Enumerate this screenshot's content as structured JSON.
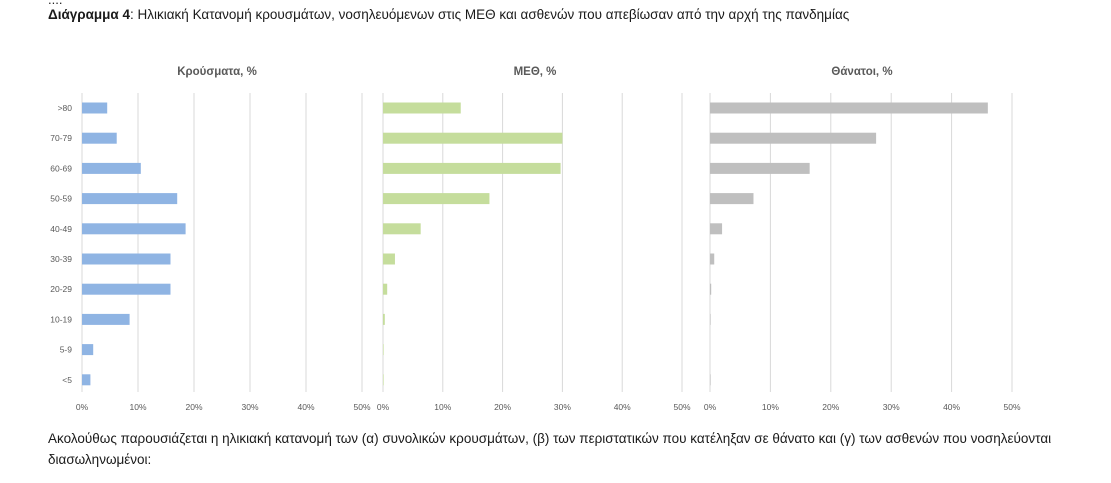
{
  "header": {
    "clipped_line": "....",
    "caption_prefix": "Διάγραμμα 4",
    "caption_text": ": Ηλικιακή Κατανομή κρουσμάτων, νοσηλευόμενων στις ΜΕΘ και ασθενών που απεβίωσαν από την αρχή της πανδημίας"
  },
  "paragraph": {
    "text": "Ακολούθως παρουσιάζεται η ηλικιακή κατανομή των (α) συνολικών κρουσμάτων, (β) των περιστατικών που κατέληξαν σε θάνατο και (γ) των ασθενών που νοσηλεύονται διασωληνωμένοι:"
  },
  "chart_data": [
    {
      "type": "bar",
      "orientation": "horizontal",
      "title": "Κρούσματα, %",
      "categories": [
        ">80",
        "70-79",
        "60-69",
        "50-59",
        "40-49",
        "30-39",
        "20-29",
        "10-19",
        "5-9",
        "<5"
      ],
      "values": [
        4.5,
        6.2,
        10.5,
        17.0,
        18.5,
        15.8,
        15.8,
        8.5,
        2.0,
        1.5
      ],
      "xlim": [
        0,
        50
      ],
      "xticks": [
        "0%",
        "10%",
        "20%",
        "30%",
        "40%",
        "50%"
      ],
      "color": "#8fb4e3",
      "grid": true
    },
    {
      "type": "bar",
      "orientation": "horizontal",
      "title": "ΜΕΘ, %",
      "categories": [
        ">80",
        "70-79",
        "60-69",
        "50-59",
        "40-49",
        "30-39",
        "20-29",
        "10-19",
        "5-9",
        "<5"
      ],
      "values": [
        13.0,
        30.0,
        29.7,
        17.8,
        6.3,
        2.0,
        0.7,
        0.3,
        0.1,
        0.1
      ],
      "xlim": [
        0,
        50
      ],
      "xticks": [
        "0%",
        "10%",
        "20%",
        "30%",
        "40%",
        "50%"
      ],
      "color": "#c5dd9c",
      "grid": true
    },
    {
      "type": "bar",
      "orientation": "horizontal",
      "title": "Θάνατοι, %",
      "categories": [
        ">80",
        "70-79",
        "60-69",
        "50-59",
        "40-49",
        "30-39",
        "20-29",
        "10-19",
        "5-9",
        "<5"
      ],
      "values": [
        46.0,
        27.5,
        16.5,
        7.2,
        2.0,
        0.7,
        0.2,
        0.1,
        0.0,
        0.1
      ],
      "xlim": [
        0,
        50
      ],
      "xticks": [
        "0%",
        "10%",
        "20%",
        "30%",
        "40%",
        "50%"
      ],
      "color": "#bfbfbf",
      "grid": true
    }
  ]
}
